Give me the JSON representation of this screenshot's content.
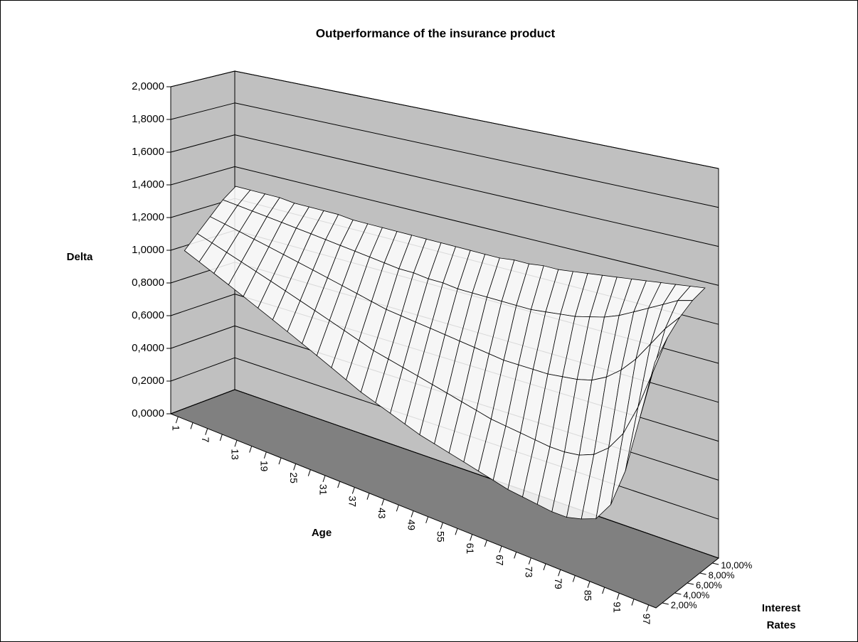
{
  "chart_data": {
    "type": "surface3d",
    "title": "Outperformance of the insurance product",
    "y_label": "Delta",
    "x_label": "Age",
    "z_label": [
      "Interest",
      "Rates"
    ],
    "categories": [
      "1",
      null,
      "7",
      null,
      "13",
      null,
      "19",
      null,
      "25",
      null,
      "31",
      null,
      "37",
      null,
      "43",
      null,
      "49",
      null,
      "55",
      null,
      "61",
      null,
      "67",
      null,
      "73",
      null,
      "79",
      null,
      "85",
      null,
      "91",
      null,
      "97"
    ],
    "color": "#ffffff",
    "wall_color": "#c0c0c0",
    "floor_color": "#808080",
    "series": [
      {
        "name": "2,00%",
        "values": [
          1.0,
          0.96,
          0.92,
          0.88,
          0.84,
          0.8,
          0.76,
          0.72,
          0.68,
          0.64,
          0.6,
          0.56,
          0.52,
          0.49,
          0.46,
          0.43,
          0.4,
          0.38,
          0.36,
          0.34,
          0.32,
          0.3,
          0.28,
          0.27,
          0.26,
          0.25,
          0.25,
          0.27,
          0.3,
          0.4,
          0.6,
          0.9,
          1.2
        ]
      },
      {
        "name": "4,00%",
        "values": [
          1.08,
          1.05,
          1.02,
          0.99,
          0.96,
          0.93,
          0.9,
          0.87,
          0.84,
          0.81,
          0.78,
          0.75,
          0.72,
          0.7,
          0.68,
          0.66,
          0.64,
          0.62,
          0.6,
          0.58,
          0.56,
          0.55,
          0.54,
          0.53,
          0.52,
          0.52,
          0.53,
          0.56,
          0.62,
          0.72,
          0.88,
          1.08,
          1.28
        ]
      },
      {
        "name": "6,00%",
        "values": [
          1.16,
          1.14,
          1.12,
          1.1,
          1.08,
          1.06,
          1.04,
          1.02,
          1.0,
          0.98,
          0.96,
          0.94,
          0.92,
          0.91,
          0.9,
          0.89,
          0.88,
          0.87,
          0.86,
          0.85,
          0.84,
          0.84,
          0.84,
          0.84,
          0.85,
          0.86,
          0.88,
          0.92,
          0.98,
          1.06,
          1.16,
          1.26,
          1.34
        ]
      },
      {
        "name": "8,00%",
        "values": [
          1.24,
          1.23,
          1.22,
          1.21,
          1.2,
          1.19,
          1.18,
          1.17,
          1.16,
          1.15,
          1.14,
          1.13,
          1.12,
          1.12,
          1.11,
          1.11,
          1.1,
          1.1,
          1.1,
          1.1,
          1.1,
          1.1,
          1.11,
          1.12,
          1.13,
          1.15,
          1.17,
          1.2,
          1.24,
          1.28,
          1.32,
          1.36,
          1.38
        ]
      },
      {
        "name": "10,00%",
        "values": [
          1.3,
          1.3,
          1.3,
          1.3,
          1.29,
          1.29,
          1.29,
          1.29,
          1.28,
          1.28,
          1.28,
          1.28,
          1.28,
          1.28,
          1.28,
          1.28,
          1.28,
          1.28,
          1.28,
          1.29,
          1.29,
          1.3,
          1.3,
          1.31,
          1.32,
          1.33,
          1.34,
          1.35,
          1.36,
          1.37,
          1.38,
          1.39,
          1.4
        ]
      }
    ],
    "ylim": [
      0,
      2
    ],
    "yticks": [
      {
        "value": 0,
        "label": "0,0000"
      },
      {
        "value": 0.2,
        "label": "0,2000"
      },
      {
        "value": 0.4,
        "label": "0,4000"
      },
      {
        "value": 0.6,
        "label": "0,6000"
      },
      {
        "value": 0.8,
        "label": "0,8000"
      },
      {
        "value": 1,
        "label": "1,0000"
      },
      {
        "value": 1.2,
        "label": "1,2000"
      },
      {
        "value": 1.4,
        "label": "1,4000"
      },
      {
        "value": 1.6,
        "label": "1,6000"
      },
      {
        "value": 1.8,
        "label": "1,8000"
      },
      {
        "value": 2,
        "label": "2,0000"
      }
    ],
    "grid": true
  }
}
